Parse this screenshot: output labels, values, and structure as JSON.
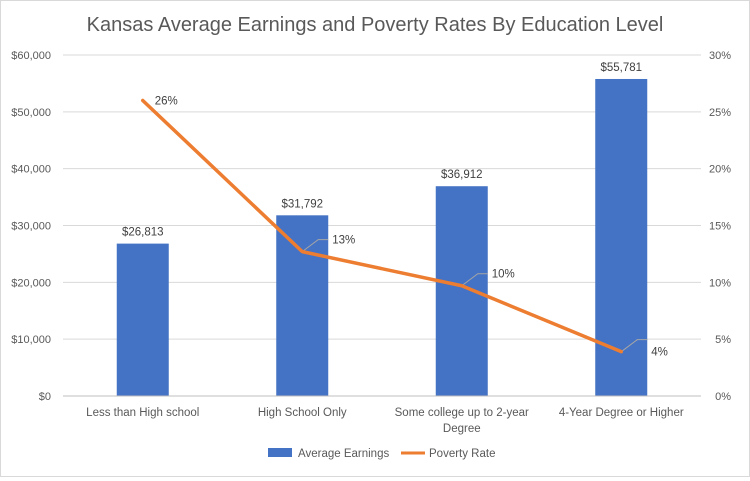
{
  "chart_data": {
    "type": "bar+line",
    "title": "Kansas Average Earnings and Poverty Rates By Education Level",
    "categories": [
      [
        "Less than High school"
      ],
      [
        "High School Only"
      ],
      [
        "Some college up to 2-year",
        "Degree"
      ],
      [
        "4-Year Degree or Higher"
      ]
    ],
    "series": [
      {
        "name": "Average Earnings",
        "type": "bar",
        "axis": "left",
        "color": "#4472c4",
        "values": [
          26813,
          31792,
          36912,
          55781
        ],
        "labels": [
          "$26,813",
          "$31,792",
          "$36,912",
          "$55,781"
        ]
      },
      {
        "name": "Poverty Rate",
        "type": "line",
        "axis": "right",
        "color": "#ed7d31",
        "values": [
          26,
          12.7,
          9.7,
          3.9
        ],
        "labels": [
          "26%",
          "13%",
          "10%",
          "4%"
        ]
      }
    ],
    "y_left": {
      "ylim": [
        0,
        60000
      ],
      "ticks": [
        0,
        10000,
        20000,
        30000,
        40000,
        50000,
        60000
      ],
      "tick_labels": [
        "$0",
        "$10,000",
        "$20,000",
        "$30,000",
        "$40,000",
        "$50,000",
        "$60,000"
      ]
    },
    "y_right": {
      "ylim": [
        0,
        30
      ],
      "ticks": [
        0,
        5,
        10,
        15,
        20,
        25,
        30
      ],
      "tick_labels": [
        "0%",
        "5%",
        "10%",
        "15%",
        "20%",
        "25%",
        "30%"
      ]
    },
    "grid": true,
    "legend_position": "bottom"
  }
}
